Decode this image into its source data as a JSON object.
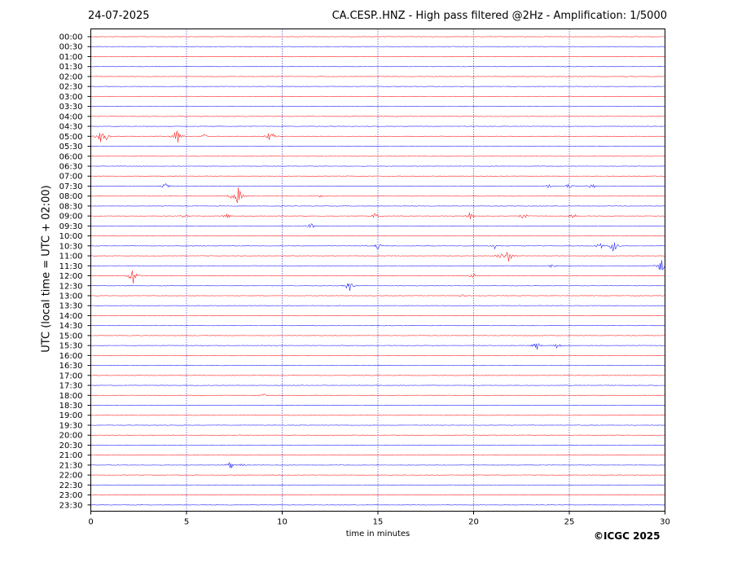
{
  "chart_data": {
    "type": "line",
    "title": "CA.CESP..HNZ - High pass filtered @2Hz - Amplification: 1/5000",
    "date": "24-07-2025",
    "xlabel": "time in minutes",
    "ylabel": "UTC (local time = UTC + 02:00)",
    "xlim": [
      0,
      30
    ],
    "x_ticks": [
      "0",
      "5",
      "10",
      "15",
      "20",
      "25",
      "30"
    ],
    "row_labels": [
      "00:00",
      "00:30",
      "01:00",
      "01:30",
      "02:00",
      "02:30",
      "03:00",
      "03:30",
      "04:00",
      "04:30",
      "05:00",
      "05:30",
      "06:00",
      "06:30",
      "07:00",
      "07:30",
      "08:00",
      "08:30",
      "09:00",
      "09:30",
      "10:00",
      "10:30",
      "11:00",
      "11:30",
      "12:00",
      "12:30",
      "13:00",
      "13:30",
      "14:00",
      "14:30",
      "15:00",
      "15:30",
      "16:00",
      "16:30",
      "17:00",
      "17:30",
      "18:00",
      "18:30",
      "19:00",
      "19:30",
      "20:00",
      "20:30",
      "21:00",
      "21:30",
      "22:00",
      "22:30",
      "23:00",
      "23:30"
    ],
    "grid": "vertical dotted at each 5 minutes",
    "colors": {
      "even_rows": "#ff0000",
      "odd_rows": "#0000ff",
      "grid": "#0000aa"
    },
    "events": [
      {
        "row": "05:00",
        "minute": 0.5,
        "amplitude": 9
      },
      {
        "row": "05:00",
        "minute": 0.8,
        "amplitude": 5
      },
      {
        "row": "05:00",
        "minute": 4.5,
        "amplitude": 12
      },
      {
        "row": "05:00",
        "minute": 5.9,
        "amplitude": 3
      },
      {
        "row": "05:00",
        "minute": 9.4,
        "amplitude": 10
      },
      {
        "row": "07:30",
        "minute": 3.9,
        "amplitude": 4
      },
      {
        "row": "07:30",
        "minute": 23.9,
        "amplitude": 3
      },
      {
        "row": "07:30",
        "minute": 25.0,
        "amplitude": 4
      },
      {
        "row": "07:30",
        "minute": 26.2,
        "amplitude": 4
      },
      {
        "row": "08:00",
        "minute": 7.4,
        "amplitude": 5
      },
      {
        "row": "08:00",
        "minute": 7.7,
        "amplitude": 12
      },
      {
        "row": "08:00",
        "minute": 12.0,
        "amplitude": 2
      },
      {
        "row": "09:00",
        "minute": 4.9,
        "amplitude": 3
      },
      {
        "row": "09:00",
        "minute": 7.1,
        "amplitude": 4
      },
      {
        "row": "09:00",
        "minute": 14.9,
        "amplitude": 6
      },
      {
        "row": "09:00",
        "minute": 19.8,
        "amplitude": 5
      },
      {
        "row": "09:00",
        "minute": 22.6,
        "amplitude": 5
      },
      {
        "row": "09:00",
        "minute": 25.2,
        "amplitude": 4
      },
      {
        "row": "09:30",
        "minute": 11.5,
        "amplitude": 4
      },
      {
        "row": "10:30",
        "minute": 15.0,
        "amplitude": 4
      },
      {
        "row": "10:30",
        "minute": 21.1,
        "amplitude": 4
      },
      {
        "row": "10:30",
        "minute": 26.6,
        "amplitude": 5
      },
      {
        "row": "10:30",
        "minute": 27.3,
        "amplitude": 9
      },
      {
        "row": "11:00",
        "minute": 21.4,
        "amplitude": 5
      },
      {
        "row": "11:00",
        "minute": 21.8,
        "amplitude": 10
      },
      {
        "row": "11:30",
        "minute": 24.1,
        "amplitude": 3
      },
      {
        "row": "11:30",
        "minute": 29.8,
        "amplitude": 12
      },
      {
        "row": "12:00",
        "minute": 2.2,
        "amplitude": 13
      },
      {
        "row": "12:00",
        "minute": 20.0,
        "amplitude": 4
      },
      {
        "row": "12:30",
        "minute": 13.5,
        "amplitude": 8
      },
      {
        "row": "13:00",
        "minute": 19.4,
        "amplitude": 2
      },
      {
        "row": "15:30",
        "minute": 23.3,
        "amplitude": 6
      },
      {
        "row": "15:30",
        "minute": 24.4,
        "amplitude": 5
      },
      {
        "row": "18:00",
        "minute": 9.0,
        "amplitude": 3
      },
      {
        "row": "21:30",
        "minute": 7.3,
        "amplitude": 6
      },
      {
        "row": "21:30",
        "minute": 7.9,
        "amplitude": 2
      }
    ]
  },
  "copyright": "©ICGC 2025"
}
